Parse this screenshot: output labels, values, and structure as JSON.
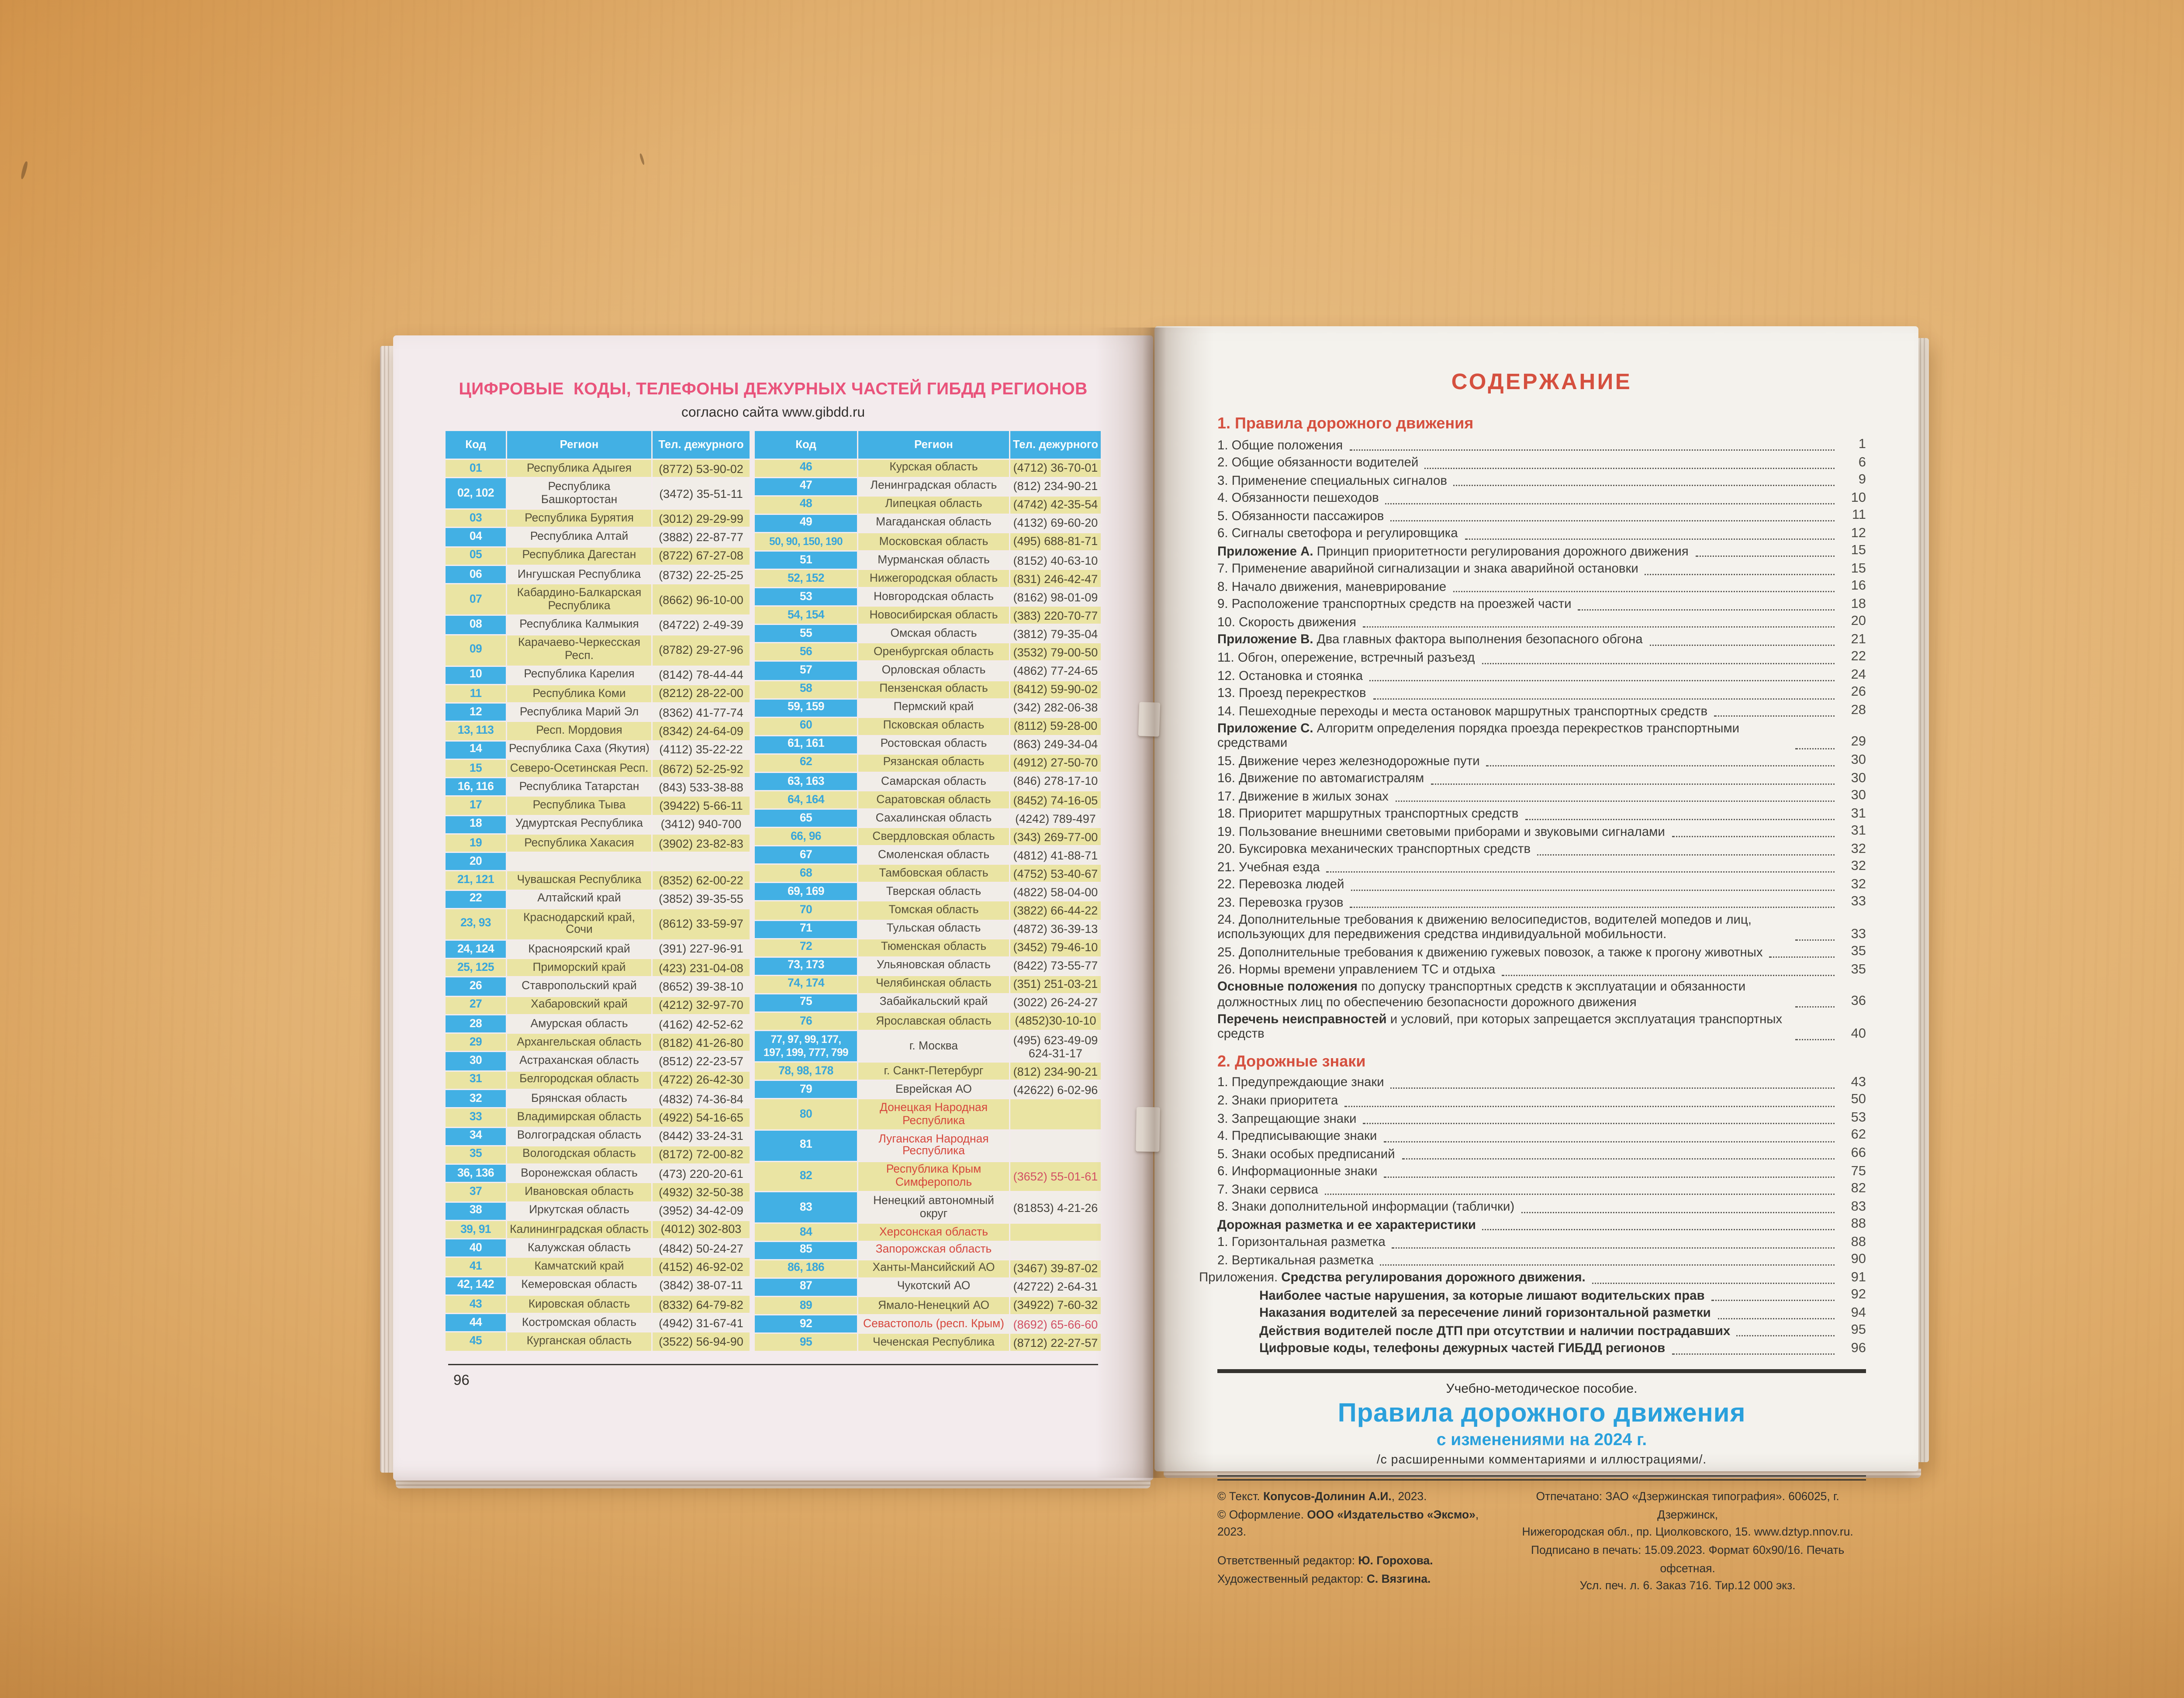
{
  "colors": {
    "header_blue": "#42b0e4",
    "row_yellow": "#eae4a3",
    "row_white": "#f1ede8",
    "code_blue_text": "#38a6db",
    "red_text": "#d6473d",
    "rose_phone": "#d14f63",
    "title_pink": "#e9537b",
    "toc_red": "#d5503f",
    "book_title_blue": "#2aa0dc"
  },
  "left_page": {
    "title": "ЦИФРОВЫЕ  КОДЫ, ТЕЛЕФОНЫ ДЕЖУРНЫХ ЧАСТЕЙ ГИБДД РЕГИОНОВ",
    "subtitle": "согласно сайта www.gibdd.ru",
    "page_number": "96",
    "table": {
      "headers": [
        "Код",
        "Регион",
        "Тел. дежурного"
      ],
      "left_rows": [
        {
          "c": "01",
          "r": "Республика Адыгея",
          "p": "(8772) 53-90-02"
        },
        {
          "c": "02, 102",
          "r": "Республика Башкортостан",
          "p": "(3472) 35-51-11"
        },
        {
          "c": "03",
          "r": "Республика Бурятия",
          "p": "(3012) 29-29-99"
        },
        {
          "c": "04",
          "r": "Республика Алтай",
          "p": "(3882) 22-87-77"
        },
        {
          "c": "05",
          "r": "Республика Дагестан",
          "p": "(8722) 67-27-08"
        },
        {
          "c": "06",
          "r": "Ингушская Республика",
          "p": "(8732) 22-25-25"
        },
        {
          "c": "07",
          "r": "Кабардино-Балкарская\nРеспублика",
          "p": "(8662) 96-10-00"
        },
        {
          "c": "08",
          "r": "Республика Калмыкия",
          "p": "(84722) 2-49-39"
        },
        {
          "c": "09",
          "r": "Карачаево-Черкесская Респ.",
          "p": "(8782) 29-27-96"
        },
        {
          "c": "10",
          "r": "Республика Карелия",
          "p": "(8142) 78-44-44"
        },
        {
          "c": "11",
          "r": "Республика Коми",
          "p": "(8212) 28-22-00"
        },
        {
          "c": "12",
          "r": "Республика Марий Эл",
          "p": "(8362) 41-77-74"
        },
        {
          "c": "13, 113",
          "r": "Респ. Мордовия",
          "p": "(8342) 24-64-09"
        },
        {
          "c": "14",
          "r": "Республика Саха (Якутия)",
          "p": "(4112) 35-22-22"
        },
        {
          "c": "15",
          "r": "Северо-Осетинская Респ.",
          "p": "(8672) 52-25-92"
        },
        {
          "c": "16, 116",
          "r": "Республика Татарстан",
          "p": "(843) 533-38-88"
        },
        {
          "c": "17",
          "r": "Республика Тыва",
          "p": "(39422) 5-66-11"
        },
        {
          "c": "18",
          "r": "Удмуртская Республика",
          "p": "(3412) 940-700"
        },
        {
          "c": "19",
          "r": "Республика Хакасия",
          "p": "(3902) 23-82-83"
        },
        {
          "c": "20",
          "r": "",
          "p": ""
        },
        {
          "c": "21, 121",
          "r": "Чувашская Республика",
          "p": "(8352) 62-00-22"
        },
        {
          "c": "22",
          "r": "Алтайский край",
          "p": "(3852) 39-35-55"
        },
        {
          "c": "23, 93",
          "r": "Краснодарский край, Сочи",
          "p": "(8612) 33-59-97"
        },
        {
          "c": "24, 124",
          "r": "Красноярский край",
          "p": "(391) 227-96-91"
        },
        {
          "c": "25, 125",
          "r": "Приморский край",
          "p": "(423) 231-04-08"
        },
        {
          "c": "26",
          "r": "Ставропольский край",
          "p": "(8652) 39-38-10"
        },
        {
          "c": "27",
          "r": "Хабаровский край",
          "p": "(4212) 32-97-70"
        },
        {
          "c": "28",
          "r": "Амурская область",
          "p": "(4162) 42-52-62"
        },
        {
          "c": "29",
          "r": "Архангельская область",
          "p": "(8182) 41-26-80"
        },
        {
          "c": "30",
          "r": "Астраханская область",
          "p": "(8512) 22-23-57"
        },
        {
          "c": "31",
          "r": "Белгородская область",
          "p": "(4722) 26-42-30"
        },
        {
          "c": "32",
          "r": "Брянская область",
          "p": "(4832) 74-36-84"
        },
        {
          "c": "33",
          "r": "Владимирская область",
          "p": "(4922) 54-16-65"
        },
        {
          "c": "34",
          "r": "Волгоградская область",
          "p": "(8442) 33-24-31"
        },
        {
          "c": "35",
          "r": "Вологодская область",
          "p": "(8172) 72-00-82"
        },
        {
          "c": "36, 136",
          "r": "Воронежская область",
          "p": "(473) 220-20-61"
        },
        {
          "c": "37",
          "r": "Ивановская область",
          "p": "(4932) 32-50-38"
        },
        {
          "c": "38",
          "r": "Иркутская область",
          "p": "(3952) 34-42-09"
        },
        {
          "c": "39, 91",
          "r": "Калининградская область",
          "p": "(4012) 302-803"
        },
        {
          "c": "40",
          "r": "Калужская область",
          "p": "(4842) 50-24-27"
        },
        {
          "c": "41",
          "r": "Камчатский край",
          "p": "(4152) 46-92-02"
        },
        {
          "c": "42, 142",
          "r": "Кемеровская область",
          "p": "(3842) 38-07-11"
        },
        {
          "c": "43",
          "r": "Кировская область",
          "p": "(8332) 64-79-82"
        },
        {
          "c": "44",
          "r": "Костромская область",
          "p": "(4942) 31-67-41"
        },
        {
          "c": "45",
          "r": "Курганская область",
          "p": "(3522) 56-94-90"
        }
      ],
      "right_rows": [
        {
          "c": "46",
          "r": "Курская область",
          "p": "(4712) 36-70-01"
        },
        {
          "c": "47",
          "r": "Ленинградская область",
          "p": "(812) 234-90-21"
        },
        {
          "c": "48",
          "r": "Липецкая область",
          "p": "(4742) 42-35-54"
        },
        {
          "c": "49",
          "r": "Магаданская область",
          "p": "(4132) 69-60-20"
        },
        {
          "c": "50, 90, 150, 190",
          "r": "Московская область",
          "p": "(495) 688-81-71"
        },
        {
          "c": "51",
          "r": "Мурманская область",
          "p": "(8152) 40-63-10"
        },
        {
          "c": "52, 152",
          "r": "Нижегородская область",
          "p": "(831) 246-42-47"
        },
        {
          "c": "53",
          "r": "Новгородская область",
          "p": "(8162) 98-01-09"
        },
        {
          "c": "54, 154",
          "r": "Новосибирская область",
          "p": "(383) 220-70-77"
        },
        {
          "c": "55",
          "r": "Омская область",
          "p": "(3812) 79-35-04"
        },
        {
          "c": "56",
          "r": "Оренбургская область",
          "p": "(3532) 79-00-50"
        },
        {
          "c": "57",
          "r": "Орловская область",
          "p": "(4862) 77-24-65"
        },
        {
          "c": "58",
          "r": "Пензенская область",
          "p": "(8412) 59-90-02"
        },
        {
          "c": "59, 159",
          "r": "Пермский край",
          "p": "(342) 282-06-38"
        },
        {
          "c": "60",
          "r": "Псковская область",
          "p": "(8112) 59-28-00"
        },
        {
          "c": "61, 161",
          "r": "Ростовская область",
          "p": "(863) 249-34-04"
        },
        {
          "c": "62",
          "r": "Рязанская область",
          "p": "(4912) 27-50-70"
        },
        {
          "c": "63, 163",
          "r": "Самарская область",
          "p": "(846) 278-17-10"
        },
        {
          "c": "64, 164",
          "r": "Саратовская область",
          "p": "(8452) 74-16-05"
        },
        {
          "c": "65",
          "r": "Сахалинская область",
          "p": "(4242) 789-497"
        },
        {
          "c": "66, 96",
          "r": "Свердловская область",
          "p": "(343) 269-77-00"
        },
        {
          "c": "67",
          "r": "Смоленская область",
          "p": "(4812) 41-88-71"
        },
        {
          "c": "68",
          "r": "Тамбовская область",
          "p": "(4752) 53-40-67"
        },
        {
          "c": "69, 169",
          "r": "Тверская область",
          "p": "(4822) 58-04-00"
        },
        {
          "c": "70",
          "r": "Томская область",
          "p": "(3822) 66-44-22"
        },
        {
          "c": "71",
          "r": "Тульская область",
          "p": "(4872) 36-39-13"
        },
        {
          "c": "72",
          "r": "Тюменская область",
          "p": "(3452) 79-46-10"
        },
        {
          "c": "73, 173",
          "r": "Ульяновская область",
          "p": "(8422) 73-55-77"
        },
        {
          "c": "74, 174",
          "r": "Челябинская область",
          "p": "(351) 251-03-21"
        },
        {
          "c": "75",
          "r": "Забайкальский край",
          "p": "(3022) 26-24-27"
        },
        {
          "c": "76",
          "r": "Ярославская область",
          "p": "(4852)30-10-10"
        },
        {
          "c": "77, 97, 99, 177,\n197, 199, 777, 799",
          "r": "г. Москва",
          "p": "(495) 623-49-09\n624-31-17"
        },
        {
          "c": "78, 98, 178",
          "r": "г. Санкт-Петербург",
          "p": "(812) 234-90-21"
        },
        {
          "c": "79",
          "r": "Еврейская АО",
          "p": "(42622) 6-02-96"
        },
        {
          "c": "80",
          "r": "Донецкая Народная\nРеспублика",
          "p": "",
          "rr": true
        },
        {
          "c": "81",
          "r": "Луганская Народная\nРеспублика",
          "p": "",
          "rr": true
        },
        {
          "c": "82",
          "r": "Республика Крым\nСимферополь",
          "p": "(3652) 55-01-61",
          "rr": true,
          "pr": true
        },
        {
          "c": "83",
          "r": "Ненецкий автономный округ",
          "p": "(81853) 4-21-26"
        },
        {
          "c": "84",
          "r": "Херсонская область",
          "p": "",
          "rr": true
        },
        {
          "c": "85",
          "r": "Запорожская область",
          "p": "",
          "rr": true
        },
        {
          "c": "86, 186",
          "r": "Ханты-Мансийский АО",
          "p": "(3467) 39-87-02"
        },
        {
          "c": "87",
          "r": "Чукотский АО",
          "p": "(42722) 2-64-31"
        },
        {
          "c": "89",
          "r": "Ямало-Ненецкий АО",
          "p": "(34922) 7-60-32"
        },
        {
          "c": "92",
          "r": "Севастополь (респ. Крым)",
          "p": "(8692) 65-66-60",
          "rr": true,
          "pr": true
        },
        {
          "c": "95",
          "r": "Чеченская Республика",
          "p": "(8712) 22-27-57"
        }
      ]
    }
  },
  "right_page": {
    "toc_title": "СОДЕРЖАНИЕ",
    "toc": [
      {
        "h": "1. Правила дорожного движения"
      },
      {
        "t": "1. Общие положения",
        "p": "1"
      },
      {
        "t": "2. Общие обязанности водителей",
        "p": "6"
      },
      {
        "t": "3. Применение специальных сигналов",
        "p": "9"
      },
      {
        "t": "4. Обязанности пешеходов",
        "p": "10"
      },
      {
        "t": "5. Обязанности пассажиров",
        "p": "11"
      },
      {
        "t": "6. Сигналы светофора и регулировщика",
        "p": "12"
      },
      {
        "b": "Приложение А.",
        "t": " Принцип приоритетности регулирования дорожного движения",
        "p": "15"
      },
      {
        "t": "7. Применение аварийной сигнализации и знака аварийной остановки",
        "p": "15"
      },
      {
        "t": "8. Начало движения, маневрирование",
        "p": "16"
      },
      {
        "t": "9. Расположение транспортных средств на проезжей части",
        "p": "18"
      },
      {
        "t": "10. Скорость движения",
        "p": "20"
      },
      {
        "b": "Приложение В.",
        "t": " Два главных фактора выполнения безопасного обгона",
        "p": "21"
      },
      {
        "t": "11. Обгон, опережение, встречный разъезд",
        "p": "22"
      },
      {
        "t": "12. Остановка и стоянка",
        "p": "24"
      },
      {
        "t": "13. Проезд перекрестков",
        "p": "26"
      },
      {
        "t": "14. Пешеходные переходы и места остановок маршрутных транспортных средств",
        "p": "28"
      },
      {
        "b": "Приложение С.",
        "t": " Алгоритм определения порядка проезда перекрестков  транспортными средствами",
        "p": "29"
      },
      {
        "t": "15. Движение через железнодорожные пути",
        "p": "30"
      },
      {
        "t": "16. Движение по автомагистралям",
        "p": "30"
      },
      {
        "t": "17. Движение в жилых зонах",
        "p": "30"
      },
      {
        "t": "18. Приоритет маршрутных транспортных средств",
        "p": "31"
      },
      {
        "t": "19. Пользование внешними световыми приборами и звуковыми сигналами",
        "p": "31"
      },
      {
        "t": "20. Буксировка механических транспортных средств",
        "p": "32"
      },
      {
        "t": "21. Учебная езда",
        "p": "32"
      },
      {
        "t": "22. Перевозка людей",
        "p": "32"
      },
      {
        "t": "23. Перевозка грузов",
        "p": "33"
      },
      {
        "t": "24. Дополнительные требования к  движению велосипедистов, водителей  мопедов и лиц, использующих для передвижения средства индивидуальной мобильности.",
        "p": "33"
      },
      {
        "t": "25. Дополнительные требования к движению гужевых повозок,  а также к прогону  животных",
        "p": "35"
      },
      {
        "t": "26. Нормы времени управлением ТС и отдыха",
        "p": "35"
      },
      {
        "b": "Основные положения",
        "t": " по допуску транспортных средств к эксплуатации и обязанности должностных лиц по обеспечению безопасности дорожного движения",
        "p": "36"
      },
      {
        "b": "Перечень неисправностей",
        "t": " и условий, при которых запрещается эксплуатация транспортных средств",
        "p": "40"
      },
      {
        "h": "2. Дорожные знаки"
      },
      {
        "t": "1. Предупреждающие знаки",
        "p": "43"
      },
      {
        "t": "2. Знаки приоритета",
        "p": "50"
      },
      {
        "t": "3. Запрещающие знаки",
        "p": "53"
      },
      {
        "t": "4. Предписывающие знаки",
        "p": "62"
      },
      {
        "t": "5. Знаки особых предписаний",
        "p": "66"
      },
      {
        "t": "6. Информационные знаки",
        "p": "75"
      },
      {
        "t": "7. Знаки сервиса",
        "p": "82"
      },
      {
        "t": "8. Знаки дополнительной информации (таблички)",
        "p": "83"
      },
      {
        "b": "Дорожная разметка и ее характеристики",
        "p": "88"
      },
      {
        "t": "1. Горизонтальная разметка",
        "p": "88"
      },
      {
        "t": "2. Вертикальная разметка",
        "p": "90"
      },
      {
        "pre": "Приложения. ",
        "b": "Средства регулирования дорожного движения.",
        "p": "91",
        "hang": true
      },
      {
        "b": "Наиболее частые нарушения, за которые лишают водительских прав",
        "p": "92",
        "ind": true
      },
      {
        "b": "Наказания водителей за пересечение линий горизонтальной разметки",
        "p": "94",
        "ind": true
      },
      {
        "b": "Действия водителей после ДТП при отсутствии и наличии пострадавших",
        "p": "95",
        "ind": true
      },
      {
        "b": "Цифровые коды, телефоны дежурных частей ГИБДД регионов",
        "p": "96",
        "ind": true
      }
    ],
    "footer": {
      "series": "Учебно-методическое пособие.",
      "book_title": "Правила дорожного движения",
      "book_subtitle": "с изменениями на 2024 г.",
      "book_note": "/с  расширенными  комментариями  и  иллюстрациями/.",
      "credits_left": [
        {
          "pre": "© Текст. ",
          "b": "Копусов-Долинин А.И.",
          "post": ", 2023."
        },
        {
          "pre": "© Оформление. ",
          "b": "ООО «Издательство «Эксмо»",
          "post": ", 2023."
        },
        {
          "pre": "Ответственный редактор: ",
          "b": "Ю. Горохова.",
          "post": "",
          "gap": true
        },
        {
          "pre": "Художественный редактор: ",
          "b": "С. Вязгина.",
          "post": ""
        }
      ],
      "credits_right": [
        "Отпечатано: ЗАО «Дзержинская типография». 606025, г. Дзержинск,",
        "Нижегородская обл., пр. Циолковского, 15.   www.dztyp.nnov.ru.",
        "Подписано в печать: 15.09.2023. Формат 60х90/16. Печать офсетная.",
        "Усл. печ. л. 6. Заказ 716. Тир.12 000 экз."
      ]
    }
  }
}
